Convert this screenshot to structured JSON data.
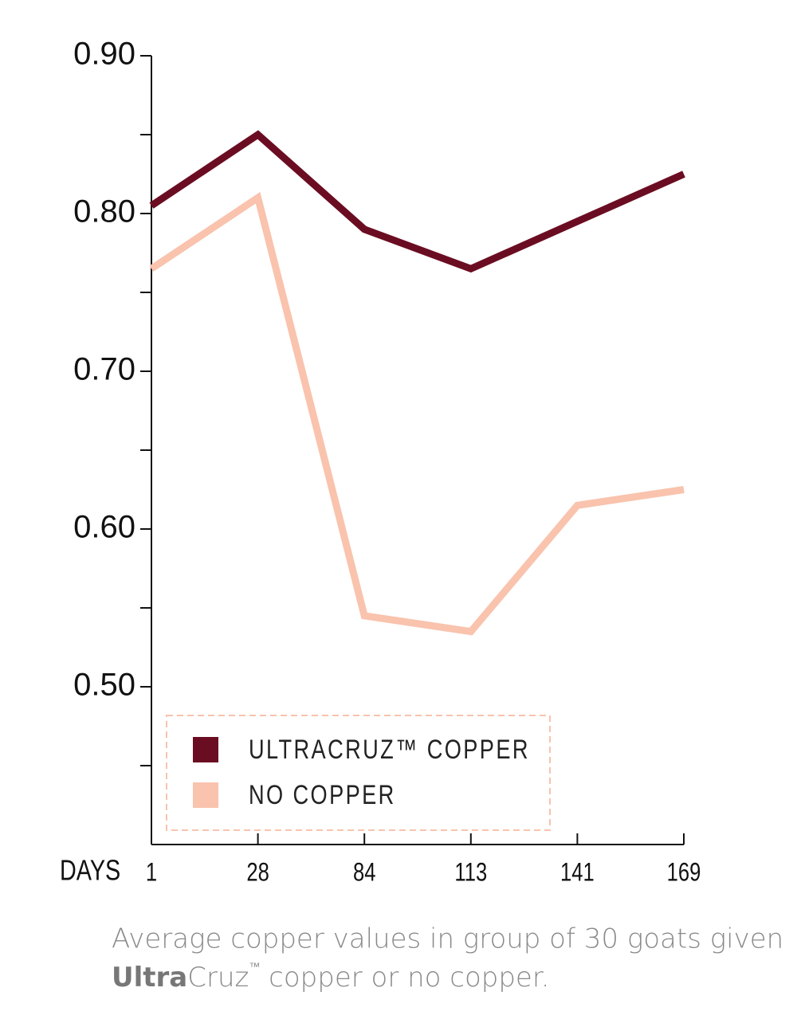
{
  "chart_data": {
    "type": "line",
    "x_label": "DAYS",
    "categories": [
      "1",
      "28",
      "84",
      "113",
      "141",
      "169"
    ],
    "series": [
      {
        "name": "ULTRACRUZ™ COPPER",
        "color": "#6b0d22",
        "values": [
          0.805,
          0.85,
          0.79,
          0.765,
          0.795,
          0.825
        ]
      },
      {
        "name": "NO COPPER",
        "color": "#f9c3ad",
        "values": [
          0.765,
          0.81,
          0.545,
          0.535,
          0.615,
          0.625
        ]
      }
    ],
    "ylim": [
      0.4,
      0.9
    ],
    "yticks": [
      {
        "value": 0.5,
        "label": "0.50"
      },
      {
        "value": 0.6,
        "label": "0.60"
      },
      {
        "value": 0.7,
        "label": "0.70"
      },
      {
        "value": 0.8,
        "label": "0.80"
      },
      {
        "value": 0.9,
        "label": "0.90"
      }
    ],
    "minor_yticks": [
      0.45,
      0.55,
      0.65,
      0.75,
      0.85
    ],
    "legend": "bottom-left",
    "caption": [
      "Average copper values in group of 30 goats given",
      "Ultra",
      "Cruz",
      "™",
      " copper or no copper."
    ]
  }
}
